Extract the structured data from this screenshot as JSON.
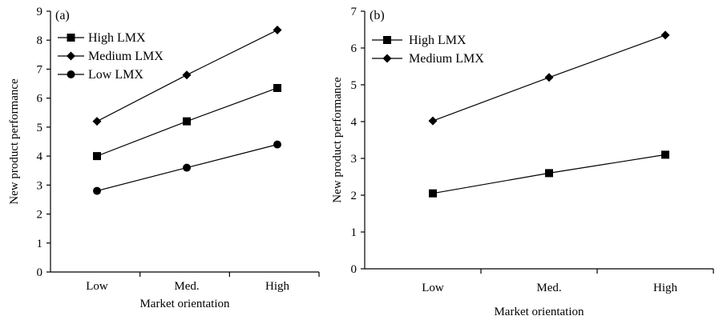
{
  "chart_data": [
    {
      "type": "line",
      "panel_label": "(a)",
      "categories": [
        "Low",
        "Med.",
        "High"
      ],
      "xlabel": "Market orientation",
      "ylabel": "New product performance",
      "ylim": [
        0,
        9
      ],
      "yticks": [
        0,
        1,
        2,
        3,
        4,
        5,
        6,
        7,
        8,
        9
      ],
      "grid": false,
      "legend_position": "top-left",
      "series": [
        {
          "name": "High LMX",
          "marker": "square",
          "values": [
            4.0,
            5.2,
            6.35
          ]
        },
        {
          "name": "Medium LMX",
          "marker": "diamond",
          "values": [
            5.2,
            6.8,
            8.35
          ]
        },
        {
          "name": "Low LMX",
          "marker": "circle",
          "values": [
            2.8,
            3.6,
            4.4
          ]
        }
      ]
    },
    {
      "type": "line",
      "panel_label": "(b)",
      "categories": [
        "Low",
        "Med.",
        "High"
      ],
      "xlabel": "Market orientation",
      "ylabel": "New product performance",
      "ylim": [
        0,
        7
      ],
      "yticks": [
        0,
        1,
        2,
        3,
        4,
        5,
        6,
        7
      ],
      "grid": false,
      "legend_position": "top-left",
      "series": [
        {
          "name": "High LMX",
          "marker": "square",
          "values": [
            2.05,
            2.6,
            3.1
          ]
        },
        {
          "name": "Medium LMX",
          "marker": "diamond",
          "values": [
            4.02,
            5.2,
            6.35
          ]
        }
      ]
    }
  ]
}
